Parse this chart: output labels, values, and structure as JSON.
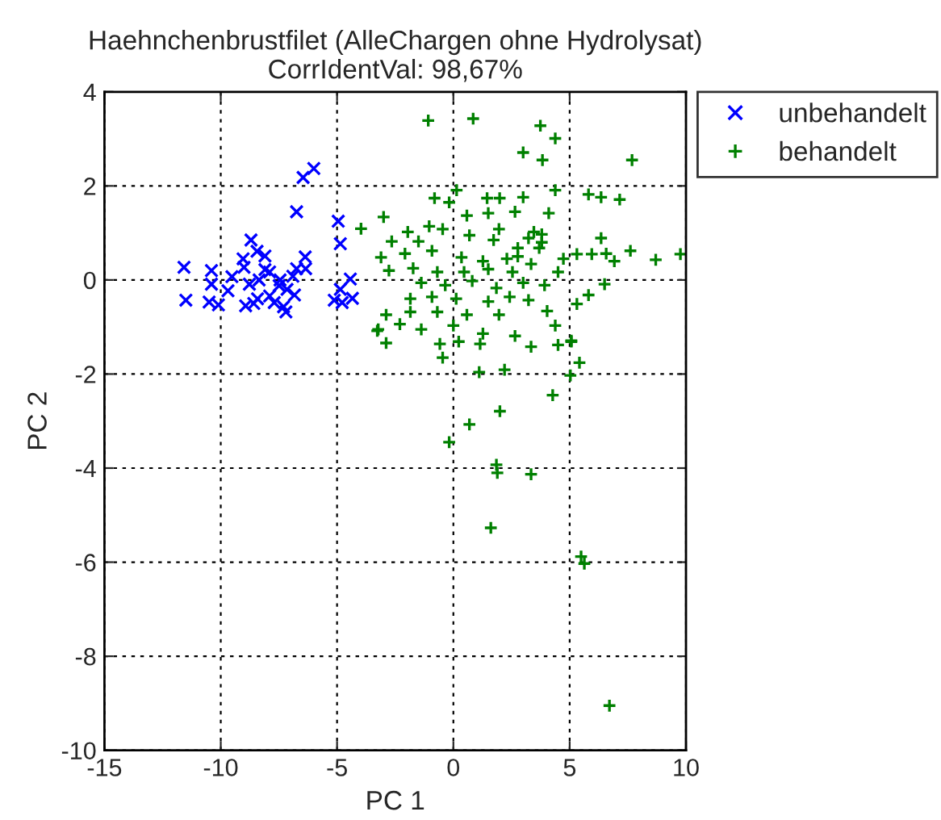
{
  "chart_data": {
    "type": "scatter",
    "title": "Haehnchenbrustfilet (AlleChargen ohne Hydrolysat)",
    "subtitle": "CorrIdentVal: 98,67%",
    "xlabel": "PC 1",
    "ylabel": "PC 2",
    "xlim": [
      -15,
      10
    ],
    "xticks": [
      -15,
      -10,
      -5,
      0,
      5,
      10
    ],
    "ylim": [
      -10,
      4
    ],
    "yticks": [
      -10,
      -8,
      -6,
      -4,
      -2,
      0,
      2,
      4
    ],
    "grid": true,
    "legend": "top right",
    "series": [
      {
        "name": "unbehandelt",
        "color": "#0000ff",
        "marker": "x",
        "x": [
          -6.0,
          -6.46,
          -6.74,
          -4.95,
          -4.86,
          -8.7,
          -8.44,
          -8.1,
          -9.04,
          -6.37,
          -11.58,
          -10.4,
          -9.52,
          -9.0,
          -8.1,
          -6.35,
          -6.74,
          -6.9,
          -7.9,
          -8.35,
          -4.43,
          -10.4,
          -9.69,
          -8.77,
          -7.49,
          -7.15,
          -6.83,
          -7.9,
          -8.42,
          -11.5,
          -10.5,
          -10.1,
          -8.93,
          -8.58,
          -7.7,
          -7.3,
          -7.2,
          -5.12,
          -4.78,
          -4.34,
          -4.86,
          -7.45
        ],
        "values": [
          2.37,
          2.18,
          1.45,
          1.25,
          0.77,
          0.85,
          0.61,
          0.51,
          0.45,
          0.49,
          0.27,
          0.2,
          0.07,
          0.27,
          0.22,
          0.24,
          0.24,
          0.08,
          0.17,
          0.0,
          0.02,
          -0.09,
          -0.23,
          -0.09,
          -0.12,
          -0.2,
          -0.32,
          -0.34,
          -0.4,
          -0.43,
          -0.47,
          -0.53,
          -0.55,
          -0.5,
          -0.48,
          -0.57,
          -0.68,
          -0.43,
          -0.48,
          -0.39,
          -0.2,
          0.0
        ]
      },
      {
        "name": "behandelt",
        "color": "#008000",
        "marker": "cross",
        "x": [
          -1.08,
          0.85,
          3.74,
          4.38,
          3.0,
          3.83,
          7.68,
          4.38,
          0.14,
          -0.81,
          1.45,
          1.99,
          3.0,
          5.81,
          6.35,
          7.15,
          -0.18,
          -3.97,
          -3.0,
          0.58,
          1.5,
          2.65,
          4.1,
          -1.04,
          -0.46,
          -1.96,
          0.69,
          1.96,
          3.23,
          3.8,
          6.35,
          -2.65,
          -1.5,
          1.73,
          2.77,
          3.69,
          5.31,
          5.95,
          6.57,
          7.61,
          6.92,
          8.7,
          9.76,
          -3.11,
          -2.08,
          -0.92,
          0.35,
          1.27,
          2.3,
          4.73,
          -2.77,
          -1.73,
          -0.69,
          0.46,
          1.5,
          2.54,
          3.34,
          4.5,
          -1.38,
          -0.35,
          0.81,
          1.85,
          3.0,
          3.92,
          6.5,
          -1.85,
          -0.92,
          0.12,
          1.5,
          2.42,
          3.23,
          5.31,
          5.81,
          -2.89,
          -1.85,
          -0.69,
          0.58,
          1.96,
          4.03,
          -3.23,
          -2.3,
          -1.38,
          0.0,
          1.27,
          2.65,
          4.38,
          -2.89,
          -0.58,
          3.34,
          4.5,
          5.07,
          0.23,
          3.46,
          3.8,
          2.77,
          -0.46,
          1.11,
          2.2,
          5.03,
          5.42,
          4.27,
          2.0,
          0.69,
          -0.18,
          1.85,
          1.89,
          3.34,
          1.61,
          5.49,
          5.63,
          6.71,
          -3.27,
          5.07,
          1.15
        ],
        "values": [
          3.39,
          3.43,
          3.28,
          3.01,
          2.71,
          2.55,
          2.55,
          1.91,
          1.91,
          1.74,
          1.74,
          1.74,
          1.76,
          1.82,
          1.76,
          1.71,
          1.65,
          1.09,
          1.34,
          1.37,
          1.42,
          1.45,
          1.42,
          1.14,
          1.08,
          1.02,
          0.95,
          1.08,
          0.89,
          0.97,
          0.89,
          0.82,
          0.82,
          0.85,
          0.68,
          0.68,
          0.55,
          0.55,
          0.56,
          0.62,
          0.4,
          0.43,
          0.55,
          0.48,
          0.56,
          0.62,
          0.48,
          0.4,
          0.45,
          0.45,
          0.2,
          0.25,
          0.17,
          0.17,
          0.23,
          0.17,
          0.34,
          0.17,
          -0.06,
          -0.11,
          -0.02,
          -0.17,
          -0.06,
          -0.11,
          -0.09,
          -0.4,
          -0.36,
          -0.4,
          -0.46,
          -0.36,
          -0.43,
          -0.51,
          -0.32,
          -0.74,
          -0.68,
          -0.68,
          -0.74,
          -0.74,
          -0.66,
          -1.05,
          -0.94,
          -1.05,
          -0.97,
          -1.14,
          -1.19,
          -0.97,
          -1.34,
          -1.36,
          -1.42,
          -1.38,
          -1.31,
          -1.31,
          1.02,
          0.8,
          0.5,
          -1.65,
          -1.96,
          -1.91,
          -2.03,
          -1.76,
          -2.45,
          -2.79,
          -3.07,
          -3.45,
          -3.93,
          -4.1,
          -4.13,
          -5.27,
          -5.88,
          -6.03,
          -9.05,
          -1.08,
          -1.29,
          -1.36
        ]
      }
    ]
  }
}
